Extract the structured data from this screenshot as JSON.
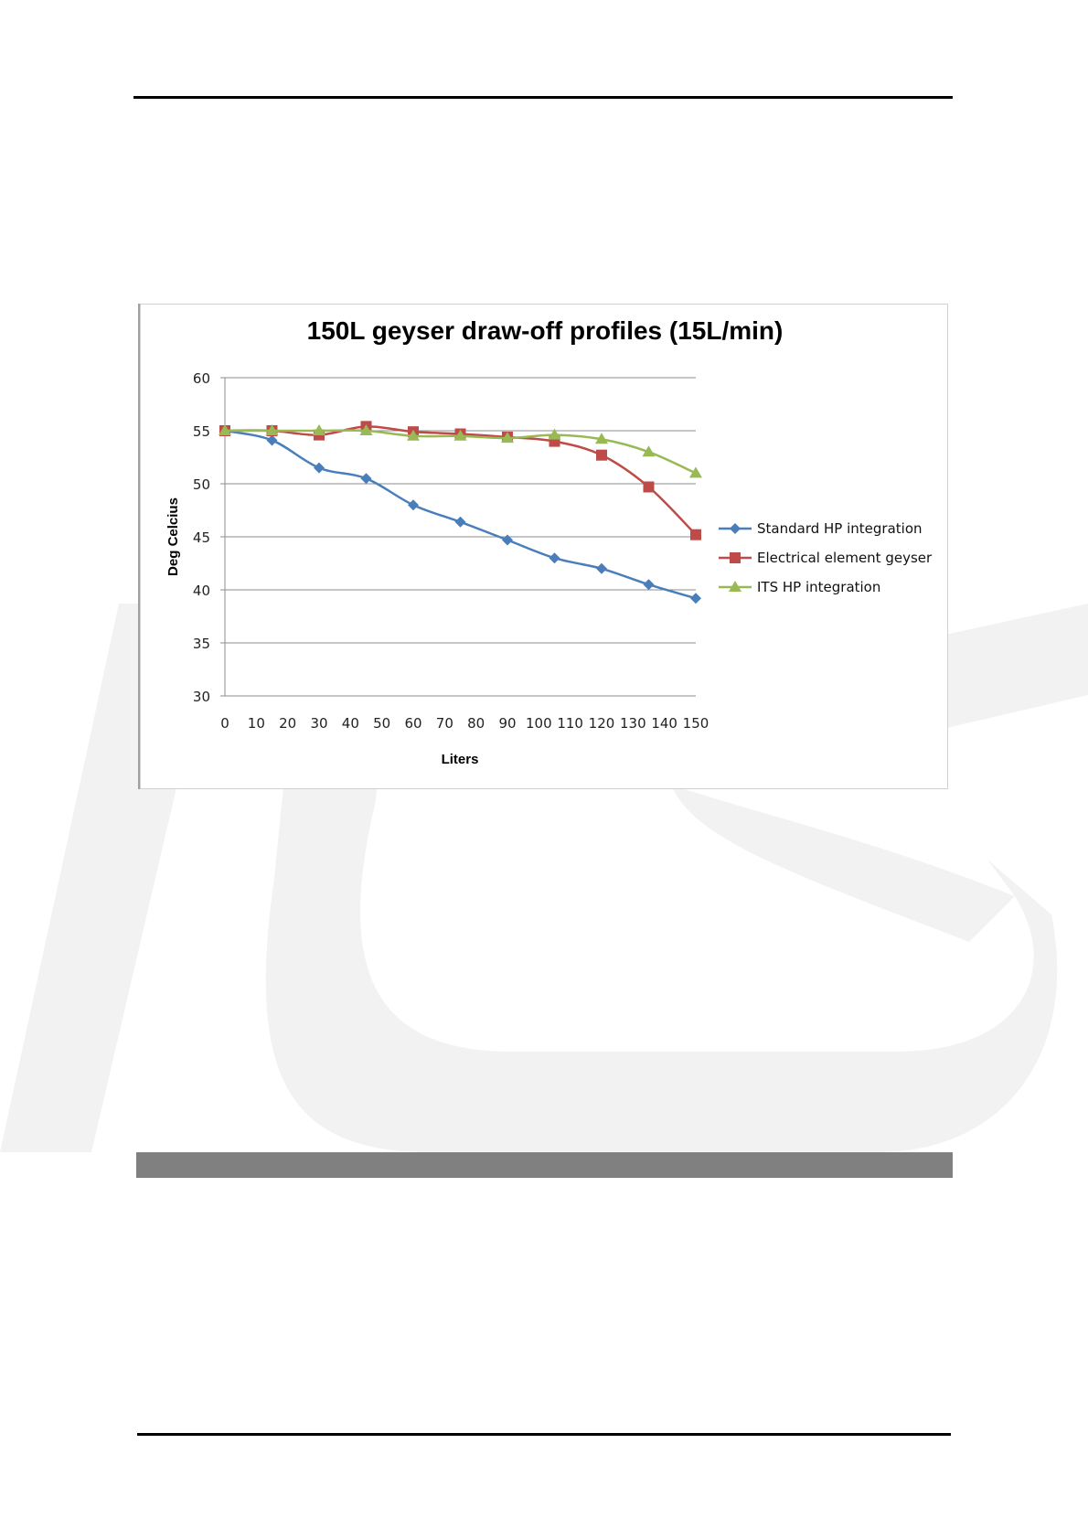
{
  "chart_data": {
    "type": "line",
    "title": "150L geyser draw-off profiles (15L/min)",
    "xlabel": "Liters",
    "ylabel": "Deg Celcius",
    "x_ticks": [
      "0",
      "10",
      "20",
      "30",
      "40",
      "50",
      "60",
      "70",
      "80",
      "90",
      "100",
      "110",
      "120",
      "130",
      "140",
      "150"
    ],
    "xlim": [
      0,
      150
    ],
    "ylim": [
      30,
      60
    ],
    "y_ticks": [
      "30",
      "35",
      "40",
      "45",
      "50",
      "55",
      "60"
    ],
    "grid": "horizontal",
    "legend_position": "right",
    "x": [
      0,
      15,
      30,
      45,
      60,
      75,
      90,
      105,
      120,
      135,
      150
    ],
    "series": [
      {
        "name": "Standard HP integration",
        "color": "#4a7ebb",
        "marker": "diamond",
        "values": [
          55.0,
          54.1,
          51.5,
          50.5,
          48.0,
          46.4,
          44.7,
          43.0,
          42.0,
          40.5,
          39.2
        ]
      },
      {
        "name": "Electrical element geyser",
        "color": "#be4b48",
        "marker": "square",
        "values": [
          55.0,
          55.0,
          54.6,
          55.4,
          54.9,
          54.7,
          54.4,
          54.0,
          52.7,
          49.7,
          45.2
        ]
      },
      {
        "name": "ITS HP integration",
        "color": "#98b954",
        "marker": "triangle",
        "values": [
          55.0,
          55.0,
          55.0,
          55.0,
          54.5,
          54.5,
          54.3,
          54.6,
          54.2,
          53.0,
          51.0
        ]
      }
    ]
  }
}
